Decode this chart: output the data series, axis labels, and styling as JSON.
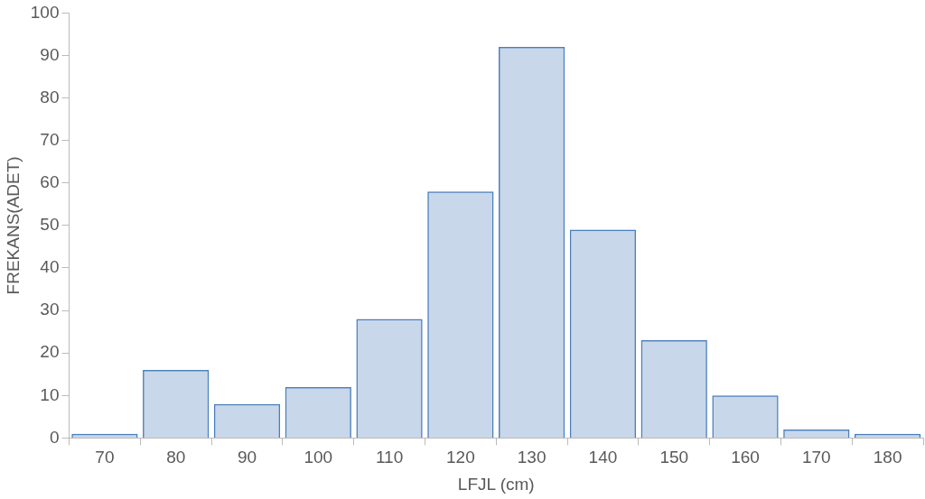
{
  "chart_data": {
    "type": "bar",
    "xlabel": "LFJL (cm)",
    "ylabel": "FREKANS(ADET)",
    "categories": [
      "70",
      "80",
      "90",
      "100",
      "110",
      "120",
      "130",
      "140",
      "150",
      "160",
      "170",
      "180"
    ],
    "values": [
      1,
      16,
      8,
      12,
      28,
      58,
      92,
      49,
      23,
      10,
      2,
      1
    ],
    "color": "#4a7ebb",
    "ylim": [
      0,
      100
    ],
    "yticks": [
      0,
      10,
      20,
      30,
      40,
      50,
      60,
      70,
      80,
      90,
      100
    ],
    "grid": false
  }
}
